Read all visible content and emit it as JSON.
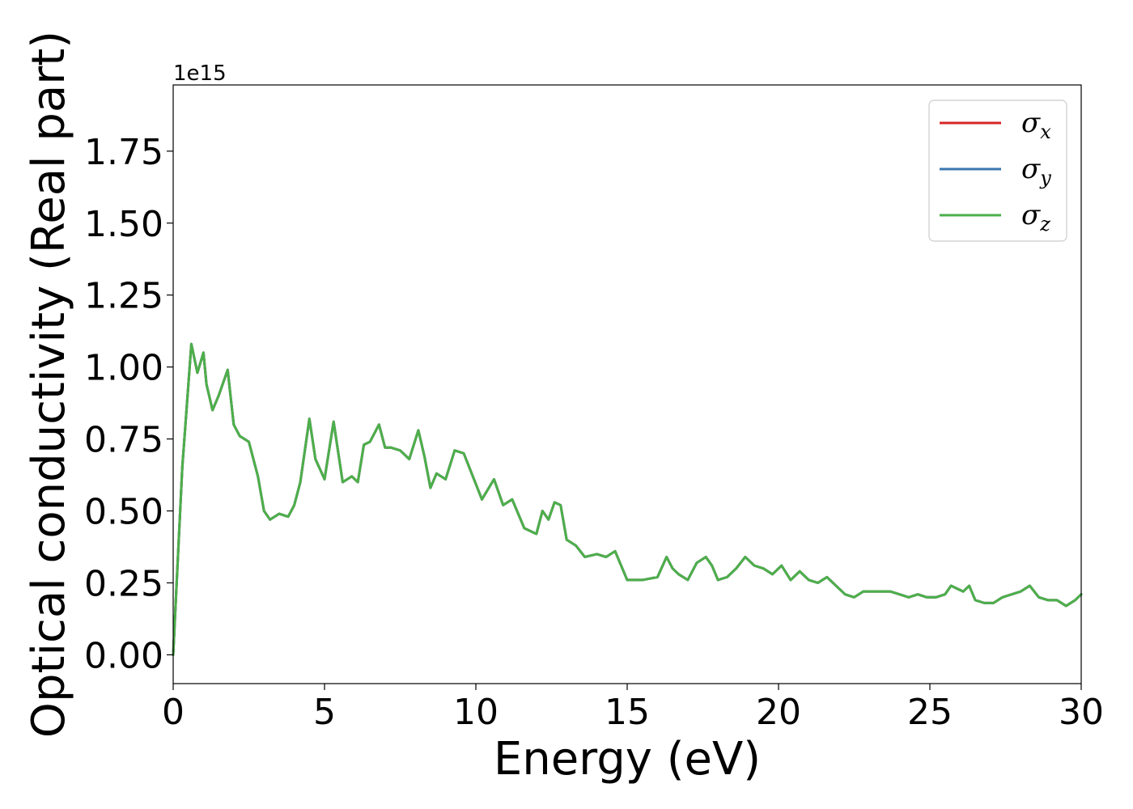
{
  "chart_data": {
    "type": "line",
    "title": "",
    "xlabel": "Energy (eV)",
    "ylabel": "Optical conductivity (Real part)",
    "y_offset_label": "1e15",
    "xlim": [
      0,
      30
    ],
    "ylim": [
      -0.1,
      1.98
    ],
    "x_ticks": [
      0,
      5,
      10,
      15,
      20,
      25,
      30
    ],
    "x_tick_labels": [
      "0",
      "5",
      "10",
      "15",
      "20",
      "25",
      "30"
    ],
    "y_ticks": [
      0.0,
      0.25,
      0.5,
      0.75,
      1.0,
      1.25,
      1.5,
      1.75
    ],
    "y_tick_labels": [
      "0.00",
      "0.25",
      "0.50",
      "0.75",
      "1.00",
      "1.25",
      "1.50",
      "1.75"
    ],
    "grid": false,
    "legend_position": "top-right",
    "legend": [
      {
        "symbol": "σ",
        "sub": "x",
        "color": "#d62728"
      },
      {
        "symbol": "σ",
        "sub": "y",
        "color": "#3a76af"
      },
      {
        "symbol": "σ",
        "sub": "z",
        "color": "#4daf4a"
      }
    ],
    "x": [
      0.0,
      0.3,
      0.6,
      0.8,
      1.0,
      1.1,
      1.3,
      1.5,
      1.8,
      2.0,
      2.2,
      2.5,
      2.8,
      3.0,
      3.2,
      3.5,
      3.8,
      4.0,
      4.2,
      4.5,
      4.7,
      5.0,
      5.3,
      5.6,
      5.9,
      6.1,
      6.3,
      6.5,
      6.8,
      7.0,
      7.2,
      7.5,
      7.8,
      8.1,
      8.3,
      8.5,
      8.7,
      9.0,
      9.3,
      9.6,
      9.9,
      10.2,
      10.6,
      10.9,
      11.2,
      11.6,
      12.0,
      12.2,
      12.4,
      12.6,
      12.8,
      13.0,
      13.3,
      13.6,
      14.0,
      14.3,
      14.6,
      15.0,
      15.5,
      16.0,
      16.3,
      16.5,
      16.7,
      17.0,
      17.3,
      17.6,
      17.8,
      18.0,
      18.3,
      18.6,
      18.9,
      19.2,
      19.5,
      19.8,
      20.1,
      20.4,
      20.7,
      21.0,
      21.3,
      21.6,
      21.9,
      22.2,
      22.5,
      22.8,
      23.1,
      23.4,
      23.7,
      24.0,
      24.3,
      24.6,
      24.9,
      25.2,
      25.5,
      25.7,
      25.9,
      26.1,
      26.3,
      26.5,
      26.8,
      27.1,
      27.4,
      27.7,
      28.0,
      28.3,
      28.6,
      28.9,
      29.2,
      29.5,
      29.8,
      30.0
    ],
    "series": [
      {
        "name": "σx",
        "color": "#d62728",
        "values": [
          0.0,
          0.65,
          1.08,
          0.98,
          1.05,
          0.94,
          0.85,
          0.9,
          0.99,
          0.8,
          0.76,
          0.74,
          0.62,
          0.5,
          0.47,
          0.49,
          0.48,
          0.52,
          0.6,
          0.82,
          0.68,
          0.61,
          0.81,
          0.6,
          0.62,
          0.6,
          0.73,
          0.74,
          0.8,
          0.72,
          0.72,
          0.71,
          0.68,
          0.78,
          0.69,
          0.58,
          0.63,
          0.61,
          0.71,
          0.7,
          0.62,
          0.54,
          0.61,
          0.52,
          0.54,
          0.44,
          0.42,
          0.5,
          0.47,
          0.53,
          0.52,
          0.4,
          0.38,
          0.34,
          0.35,
          0.34,
          0.36,
          0.26,
          0.26,
          0.27,
          0.34,
          0.3,
          0.28,
          0.26,
          0.32,
          0.34,
          0.31,
          0.26,
          0.27,
          0.3,
          0.34,
          0.31,
          0.3,
          0.28,
          0.31,
          0.26,
          0.29,
          0.26,
          0.25,
          0.27,
          0.24,
          0.21,
          0.2,
          0.22,
          0.22,
          0.22,
          0.22,
          0.21,
          0.2,
          0.21,
          0.2,
          0.2,
          0.21,
          0.24,
          0.23,
          0.22,
          0.24,
          0.19,
          0.18,
          0.18,
          0.2,
          0.21,
          0.22,
          0.24,
          0.2,
          0.19,
          0.19,
          0.17,
          0.19,
          0.21
        ]
      },
      {
        "name": "σy",
        "color": "#3a76af",
        "values": [
          0.0,
          0.65,
          1.08,
          0.98,
          1.05,
          0.94,
          0.85,
          0.9,
          0.99,
          0.8,
          0.76,
          0.74,
          0.62,
          0.5,
          0.47,
          0.49,
          0.48,
          0.52,
          0.6,
          0.82,
          0.68,
          0.61,
          0.81,
          0.6,
          0.62,
          0.6,
          0.73,
          0.74,
          0.8,
          0.72,
          0.72,
          0.71,
          0.68,
          0.78,
          0.69,
          0.58,
          0.63,
          0.61,
          0.71,
          0.7,
          0.62,
          0.54,
          0.61,
          0.52,
          0.54,
          0.44,
          0.42,
          0.5,
          0.47,
          0.53,
          0.52,
          0.4,
          0.38,
          0.34,
          0.35,
          0.34,
          0.36,
          0.26,
          0.26,
          0.27,
          0.34,
          0.3,
          0.28,
          0.26,
          0.32,
          0.34,
          0.31,
          0.26,
          0.27,
          0.3,
          0.34,
          0.31,
          0.3,
          0.28,
          0.31,
          0.26,
          0.29,
          0.26,
          0.25,
          0.27,
          0.24,
          0.21,
          0.2,
          0.22,
          0.22,
          0.22,
          0.22,
          0.21,
          0.2,
          0.21,
          0.2,
          0.2,
          0.21,
          0.24,
          0.23,
          0.22,
          0.24,
          0.19,
          0.18,
          0.18,
          0.2,
          0.21,
          0.22,
          0.24,
          0.2,
          0.19,
          0.19,
          0.17,
          0.19,
          0.21
        ]
      },
      {
        "name": "σz",
        "color": "#4daf4a",
        "values": [
          0.0,
          0.65,
          1.08,
          0.98,
          1.05,
          0.94,
          0.85,
          0.9,
          0.99,
          0.8,
          0.76,
          0.74,
          0.62,
          0.5,
          0.47,
          0.49,
          0.48,
          0.52,
          0.6,
          0.82,
          0.68,
          0.61,
          0.81,
          0.6,
          0.62,
          0.6,
          0.73,
          0.74,
          0.8,
          0.72,
          0.72,
          0.71,
          0.68,
          0.78,
          0.69,
          0.58,
          0.63,
          0.61,
          0.71,
          0.7,
          0.62,
          0.54,
          0.61,
          0.52,
          0.54,
          0.44,
          0.42,
          0.5,
          0.47,
          0.53,
          0.52,
          0.4,
          0.38,
          0.34,
          0.35,
          0.34,
          0.36,
          0.26,
          0.26,
          0.27,
          0.34,
          0.3,
          0.28,
          0.26,
          0.32,
          0.34,
          0.31,
          0.26,
          0.27,
          0.3,
          0.34,
          0.31,
          0.3,
          0.28,
          0.31,
          0.26,
          0.29,
          0.26,
          0.25,
          0.27,
          0.24,
          0.21,
          0.2,
          0.22,
          0.22,
          0.22,
          0.22,
          0.21,
          0.2,
          0.21,
          0.2,
          0.2,
          0.21,
          0.24,
          0.23,
          0.22,
          0.24,
          0.19,
          0.18,
          0.18,
          0.2,
          0.21,
          0.22,
          0.24,
          0.2,
          0.19,
          0.19,
          0.17,
          0.19,
          0.21
        ]
      }
    ]
  }
}
